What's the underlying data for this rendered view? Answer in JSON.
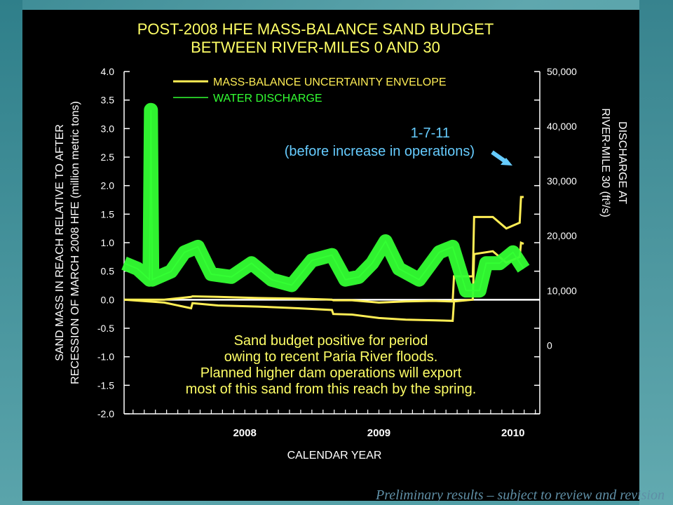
{
  "footer": {
    "note": "Preliminary results – subject to review and revision"
  },
  "colors": {
    "background": "#000000",
    "title": "#ffff66",
    "envelope": "#ffee55",
    "discharge": "#33ff33",
    "axis": "#ffffff",
    "annotation_blue": "#66ccff",
    "annotation_yellow": "#ffff66"
  },
  "chart_data": {
    "type": "line",
    "title": [
      "POST-2008 HFE MASS-BALANCE SAND BUDGET",
      "BETWEEN RIVER-MILES 0 AND 30"
    ],
    "xlabel": "CALENDAR YEAR",
    "ylabel_left": [
      "SAND MASS IN REACH RELATIVE TO AFTER",
      "RECESSION OF MARCH 2008 HFE (million metric tons)"
    ],
    "ylabel_right": [
      "DISCHARGE AT",
      "RIVER-MILE 30 (ft³/s)"
    ],
    "xlim": [
      2007.6,
      2010.7
    ],
    "ylim_left": [
      -2.0,
      4.0
    ],
    "ylim_right": [
      -12500,
      50000
    ],
    "x_ticks": [
      2008,
      2009,
      2010
    ],
    "y_ticks_left": [
      "4.0",
      "3.5",
      "3.0",
      "2.5",
      "2.0",
      "1.5",
      "1.0",
      "0.5",
      "0.0",
      "-0.5",
      "-1.0",
      "-1.5",
      "-2.0"
    ],
    "y_ticks_right": [
      "50,000",
      "40,000",
      "30,000",
      "20,000",
      "10,000",
      "0"
    ],
    "legend": [
      {
        "name": "MASS-BALANCE UNCERTAINTY ENVELOPE",
        "color": "#ffee55"
      },
      {
        "name": "WATER DISCHARGE",
        "color": "#33ff33"
      }
    ],
    "annotations": [
      {
        "lines": [
          "1-7-11",
          "(before increase in operations)"
        ],
        "color": "#66ccff"
      },
      {
        "lines": [
          "Sand budget positive for period",
          "owing to recent Paria River floods.",
          "Planned higher dam operations will export",
          "most of this sand from this reach by the spring."
        ],
        "color": "#ffff66"
      }
    ],
    "series": [
      {
        "name": "MASS-BALANCE UNCERTAINTY ENVELOPE",
        "axis": "left",
        "x": [
          2007.6,
          2007.9,
          2008.1,
          2008.11,
          2008.3,
          2008.6,
          2008.9,
          2009.15,
          2009.16,
          2009.3,
          2009.5,
          2009.7,
          2009.9,
          2010.05,
          2010.06,
          2010.2,
          2010.21,
          2010.35,
          2010.45,
          2010.5,
          2010.55,
          2010.56,
          2010.58
        ],
        "values": [
          0.0,
          0.0,
          0.05,
          0.06,
          0.05,
          0.03,
          0.02,
          0.0,
          -0.01,
          -0.01,
          -0.05,
          -0.03,
          -0.02,
          -0.03,
          0.41,
          0.41,
          1.45,
          1.45,
          1.25,
          1.3,
          1.35,
          1.8,
          1.8
        ]
      },
      {
        "name": "MASS-BALANCE UNCERTAINTY ENVELOPE",
        "axis": "left",
        "x": [
          2007.6,
          2007.9,
          2008.1,
          2008.11,
          2008.3,
          2008.6,
          2008.9,
          2009.15,
          2009.16,
          2009.3,
          2009.5,
          2009.7,
          2009.9,
          2010.05,
          2010.06,
          2010.2,
          2010.21,
          2010.35,
          2010.45,
          2010.5,
          2010.55,
          2010.56,
          2010.58
        ],
        "values": [
          0.0,
          -0.05,
          -0.15,
          -0.06,
          -0.1,
          -0.12,
          -0.15,
          -0.18,
          -0.25,
          -0.26,
          -0.32,
          -0.35,
          -0.36,
          -0.37,
          -0.03,
          0.0,
          0.8,
          0.85,
          0.65,
          0.7,
          0.75,
          1.0,
          0.98
        ]
      },
      {
        "name": "WATER DISCHARGE",
        "axis": "right",
        "x": [
          2007.6,
          2007.7,
          2007.79,
          2007.8,
          2007.81,
          2007.95,
          2008.05,
          2008.15,
          2008.25,
          2008.4,
          2008.55,
          2008.7,
          2008.85,
          2009.0,
          2009.15,
          2009.25,
          2009.35,
          2009.45,
          2009.55,
          2009.65,
          2009.8,
          2009.95,
          2010.05,
          2010.15,
          2010.25,
          2010.3,
          2010.4,
          2010.5,
          2010.58
        ],
        "values": [
          15000,
          14000,
          12000,
          43000,
          12000,
          13500,
          17000,
          18000,
          13000,
          12500,
          15000,
          12000,
          11000,
          15500,
          16500,
          12000,
          12500,
          15000,
          19000,
          14000,
          12000,
          17000,
          18000,
          10000,
          10000,
          15000,
          15000,
          17000,
          14000
        ]
      }
    ]
  }
}
